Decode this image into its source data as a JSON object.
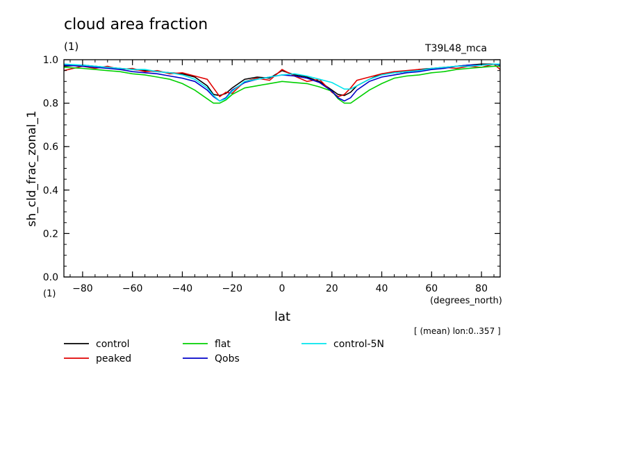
{
  "header": {
    "title": "cloud area fraction",
    "title_units": "(1)",
    "run_label": "T39L48_mca"
  },
  "axes": {
    "ylabel": "sh_cld_frac_zonal_1",
    "ylabel_units": "(1)",
    "xlabel": "lat",
    "xlabel_units": "(degrees_north)",
    "mean_note": "[ (mean) lon:0..357 ]"
  },
  "chart_data": {
    "type": "line",
    "title": "cloud area fraction",
    "xlabel": "lat",
    "ylabel": "sh_cld_frac_zonal_1",
    "xlim": [
      -87.5,
      87.5
    ],
    "ylim": [
      0,
      1
    ],
    "xticks": [
      -80,
      -60,
      -40,
      -20,
      0,
      20,
      40,
      60,
      80
    ],
    "xtick_labels": [
      "−80",
      "−60",
      "−40",
      "−20",
      "0",
      "20",
      "40",
      "60",
      "80"
    ],
    "yticks": [
      0,
      0.2,
      0.4,
      0.6,
      0.8,
      1.0
    ],
    "ytick_labels": [
      "0.0",
      "0.2",
      "0.4",
      "0.6",
      "0.8",
      "1.0"
    ],
    "grid": false,
    "legend_position": "bottom",
    "x": [
      -87.5,
      -80,
      -75,
      -70,
      -65,
      -60,
      -55,
      -50,
      -45,
      -40,
      -35,
      -30,
      -27.5,
      -25,
      -22.5,
      -20,
      -15,
      -10,
      -5,
      0,
      5,
      10,
      15,
      20,
      22.5,
      25,
      27.5,
      30,
      35,
      40,
      45,
      50,
      55,
      60,
      65,
      70,
      75,
      80,
      85,
      87.5
    ],
    "series": [
      {
        "name": "control",
        "color": "#000000",
        "values": [
          0.97,
          0.975,
          0.97,
          0.965,
          0.96,
          0.955,
          0.95,
          0.945,
          0.94,
          0.935,
          0.92,
          0.88,
          0.84,
          0.835,
          0.845,
          0.87,
          0.91,
          0.92,
          0.915,
          0.95,
          0.93,
          0.92,
          0.9,
          0.86,
          0.84,
          0.835,
          0.85,
          0.88,
          0.91,
          0.935,
          0.94,
          0.945,
          0.955,
          0.96,
          0.965,
          0.97,
          0.975,
          0.98,
          0.98,
          0.975
        ]
      },
      {
        "name": "peaked",
        "color": "#e00000",
        "values": [
          0.95,
          0.97,
          0.96,
          0.97,
          0.955,
          0.96,
          0.945,
          0.95,
          0.935,
          0.94,
          0.925,
          0.91,
          0.87,
          0.83,
          0.85,
          0.845,
          0.9,
          0.915,
          0.905,
          0.955,
          0.925,
          0.9,
          0.91,
          0.85,
          0.83,
          0.84,
          0.87,
          0.905,
          0.92,
          0.935,
          0.945,
          0.95,
          0.955,
          0.955,
          0.965,
          0.96,
          0.97,
          0.965,
          0.98,
          0.955
        ]
      },
      {
        "name": "flat",
        "color": "#00d000",
        "values": [
          0.965,
          0.96,
          0.955,
          0.95,
          0.945,
          0.935,
          0.93,
          0.92,
          0.91,
          0.89,
          0.86,
          0.82,
          0.8,
          0.8,
          0.815,
          0.84,
          0.87,
          0.88,
          0.89,
          0.9,
          0.895,
          0.89,
          0.875,
          0.855,
          0.82,
          0.8,
          0.8,
          0.82,
          0.86,
          0.89,
          0.915,
          0.925,
          0.93,
          0.94,
          0.945,
          0.955,
          0.96,
          0.965,
          0.97,
          0.97
        ]
      },
      {
        "name": "Qobs",
        "color": "#0000c8",
        "values": [
          0.975,
          0.97,
          0.965,
          0.96,
          0.955,
          0.945,
          0.94,
          0.935,
          0.925,
          0.915,
          0.9,
          0.86,
          0.83,
          0.81,
          0.825,
          0.86,
          0.895,
          0.91,
          0.92,
          0.93,
          0.925,
          0.915,
          0.895,
          0.855,
          0.825,
          0.81,
          0.825,
          0.86,
          0.9,
          0.92,
          0.93,
          0.94,
          0.945,
          0.955,
          0.96,
          0.97,
          0.975,
          0.975,
          0.98,
          0.975
        ]
      },
      {
        "name": "control-5N",
        "color": "#00e5ee",
        "values": [
          0.98,
          0.975,
          0.97,
          0.965,
          0.96,
          0.955,
          0.955,
          0.945,
          0.94,
          0.93,
          0.91,
          0.87,
          0.835,
          0.81,
          0.82,
          0.855,
          0.9,
          0.91,
          0.92,
          0.93,
          0.935,
          0.925,
          0.91,
          0.895,
          0.88,
          0.865,
          0.865,
          0.88,
          0.91,
          0.93,
          0.94,
          0.945,
          0.95,
          0.96,
          0.965,
          0.97,
          0.97,
          0.975,
          0.98,
          0.98
        ]
      }
    ]
  }
}
